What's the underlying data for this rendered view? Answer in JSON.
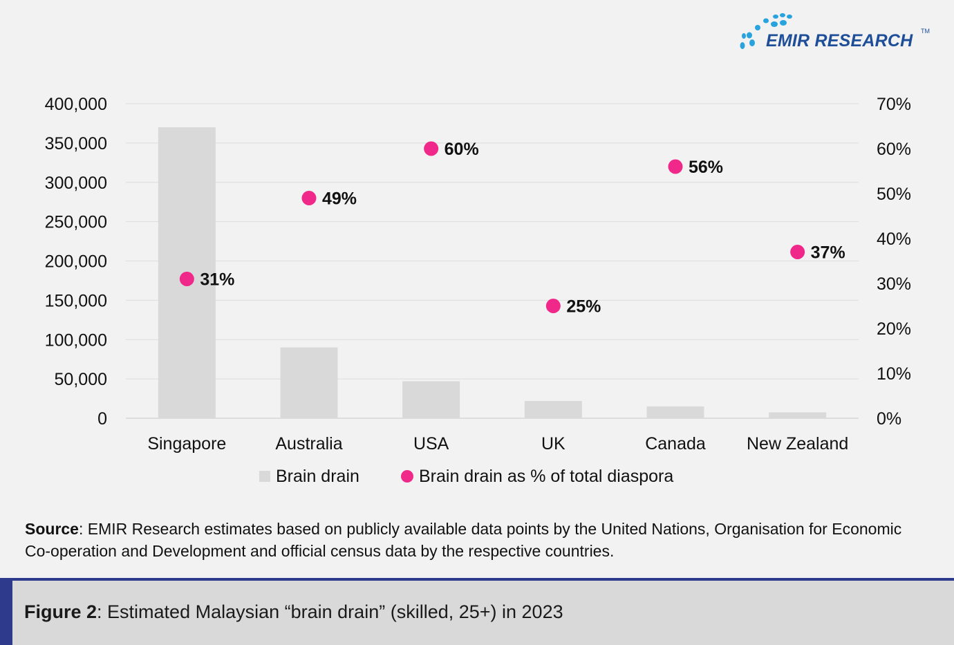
{
  "logo": {
    "text": "EMIR RESEARCH",
    "tm": "TM",
    "color": "#1f4e99",
    "dot_color": "#29a3dd"
  },
  "chart_data": {
    "type": "bar",
    "categories": [
      "Singapore",
      "Australia",
      "USA",
      "UK",
      "Canada",
      "New Zealand"
    ],
    "series": [
      {
        "name": "Brain drain",
        "type": "bar",
        "axis": "left",
        "color": "#d9d9d9",
        "values": [
          370000,
          90000,
          47000,
          22000,
          15000,
          7500
        ]
      },
      {
        "name": "Brain drain as % of total diaspora",
        "type": "scatter",
        "axis": "right",
        "color": "#f0288a",
        "values": [
          31,
          49,
          60,
          25,
          56,
          37
        ],
        "labels": [
          "31%",
          "49%",
          "60%",
          "25%",
          "56%",
          "37%"
        ]
      }
    ],
    "ylim": [
      0,
      400000
    ],
    "y_ticks": [
      "0",
      "50,000",
      "100,000",
      "150,000",
      "200,000",
      "250,000",
      "300,000",
      "350,000",
      "400,000"
    ],
    "y2lim": [
      0,
      70
    ],
    "y2_ticks": [
      "0%",
      "10%",
      "20%",
      "30%",
      "40%",
      "50%",
      "60%",
      "70%"
    ],
    "grid": true,
    "legend_position": "bottom"
  },
  "source": {
    "label": "Source",
    "text": ": EMIR Research estimates based on publicly available data points by the United Nations, Organisation for Economic Co-operation and Development and official census data by the respective countries."
  },
  "caption": {
    "label": "Figure 2",
    "text": ": Estimated Malaysian “brain drain” (skilled, 25+) in 2023",
    "accent_color": "#2e3a8c"
  }
}
